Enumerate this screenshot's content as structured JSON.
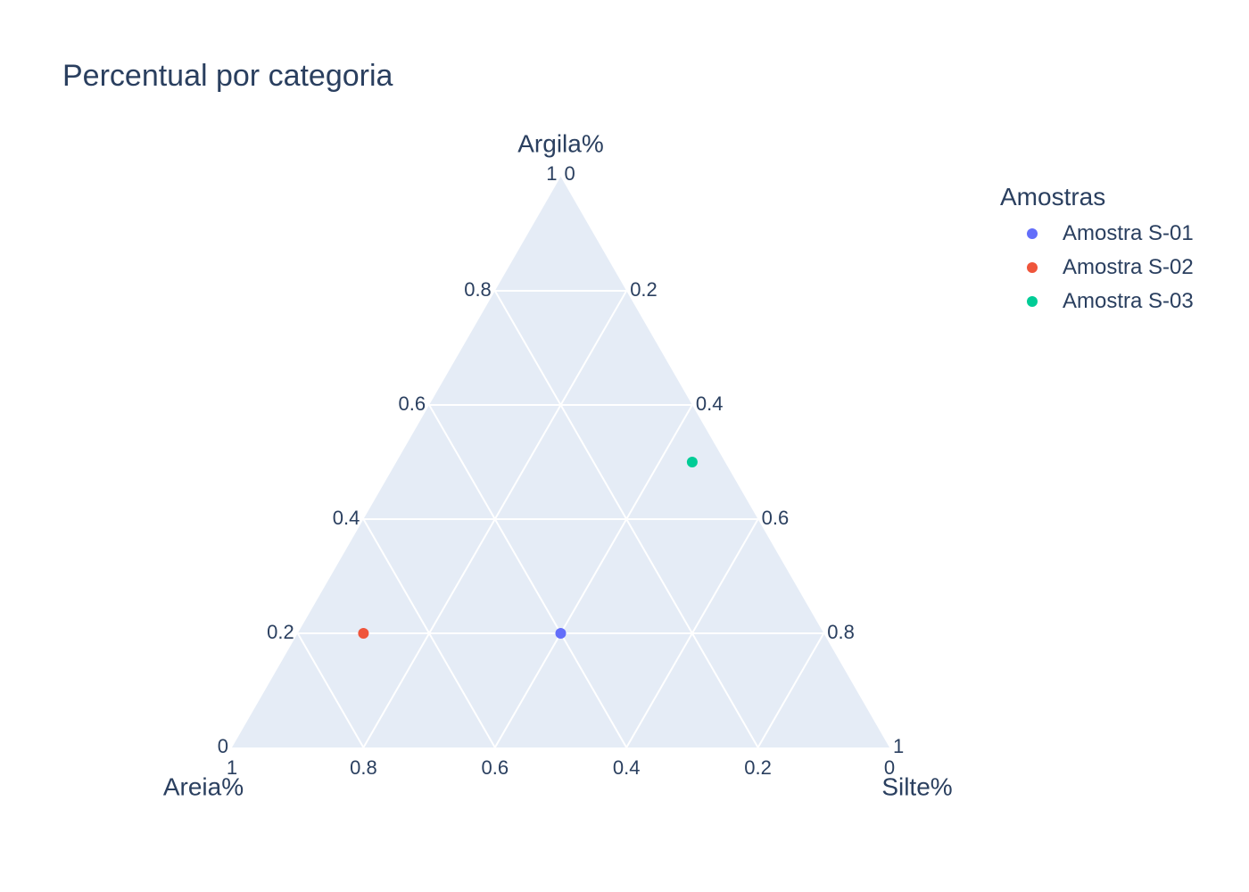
{
  "title": "Percentual por categoria",
  "legend": {
    "title": "Amostras",
    "items": [
      {
        "label": "Amostra S-01",
        "color": "#636efa"
      },
      {
        "label": "Amostra S-02",
        "color": "#ef553b"
      },
      {
        "label": "Amostra S-03",
        "color": "#00cc96"
      }
    ]
  },
  "chart_data": {
    "type": "scatter",
    "subtype": "ternary",
    "title": "Percentual por categoria",
    "axes": {
      "a": {
        "label": "Argila%",
        "ticks": [
          "0",
          "0.2",
          "0.4",
          "0.6",
          "0.8",
          "1"
        ]
      },
      "b": {
        "label": "Areia%",
        "ticks": [
          "0",
          "0.2",
          "0.4",
          "0.6",
          "0.8",
          "1"
        ]
      },
      "c": {
        "label": "Silte%",
        "ticks": [
          "0",
          "0.2",
          "0.4",
          "0.6",
          "0.8",
          "1"
        ]
      }
    },
    "series": [
      {
        "name": "Amostra S-01",
        "color": "#636efa",
        "a": 0.2,
        "b": 0.4,
        "c": 0.4
      },
      {
        "name": "Amostra S-02",
        "color": "#ef553b",
        "a": 0.2,
        "b": 0.7,
        "c": 0.1
      },
      {
        "name": "Amostra S-03",
        "color": "#00cc96",
        "a": 0.5,
        "b": 0.05,
        "c": 0.45
      }
    ],
    "background": "#e5ecf6",
    "grid": true,
    "legend_position": "top-right"
  }
}
